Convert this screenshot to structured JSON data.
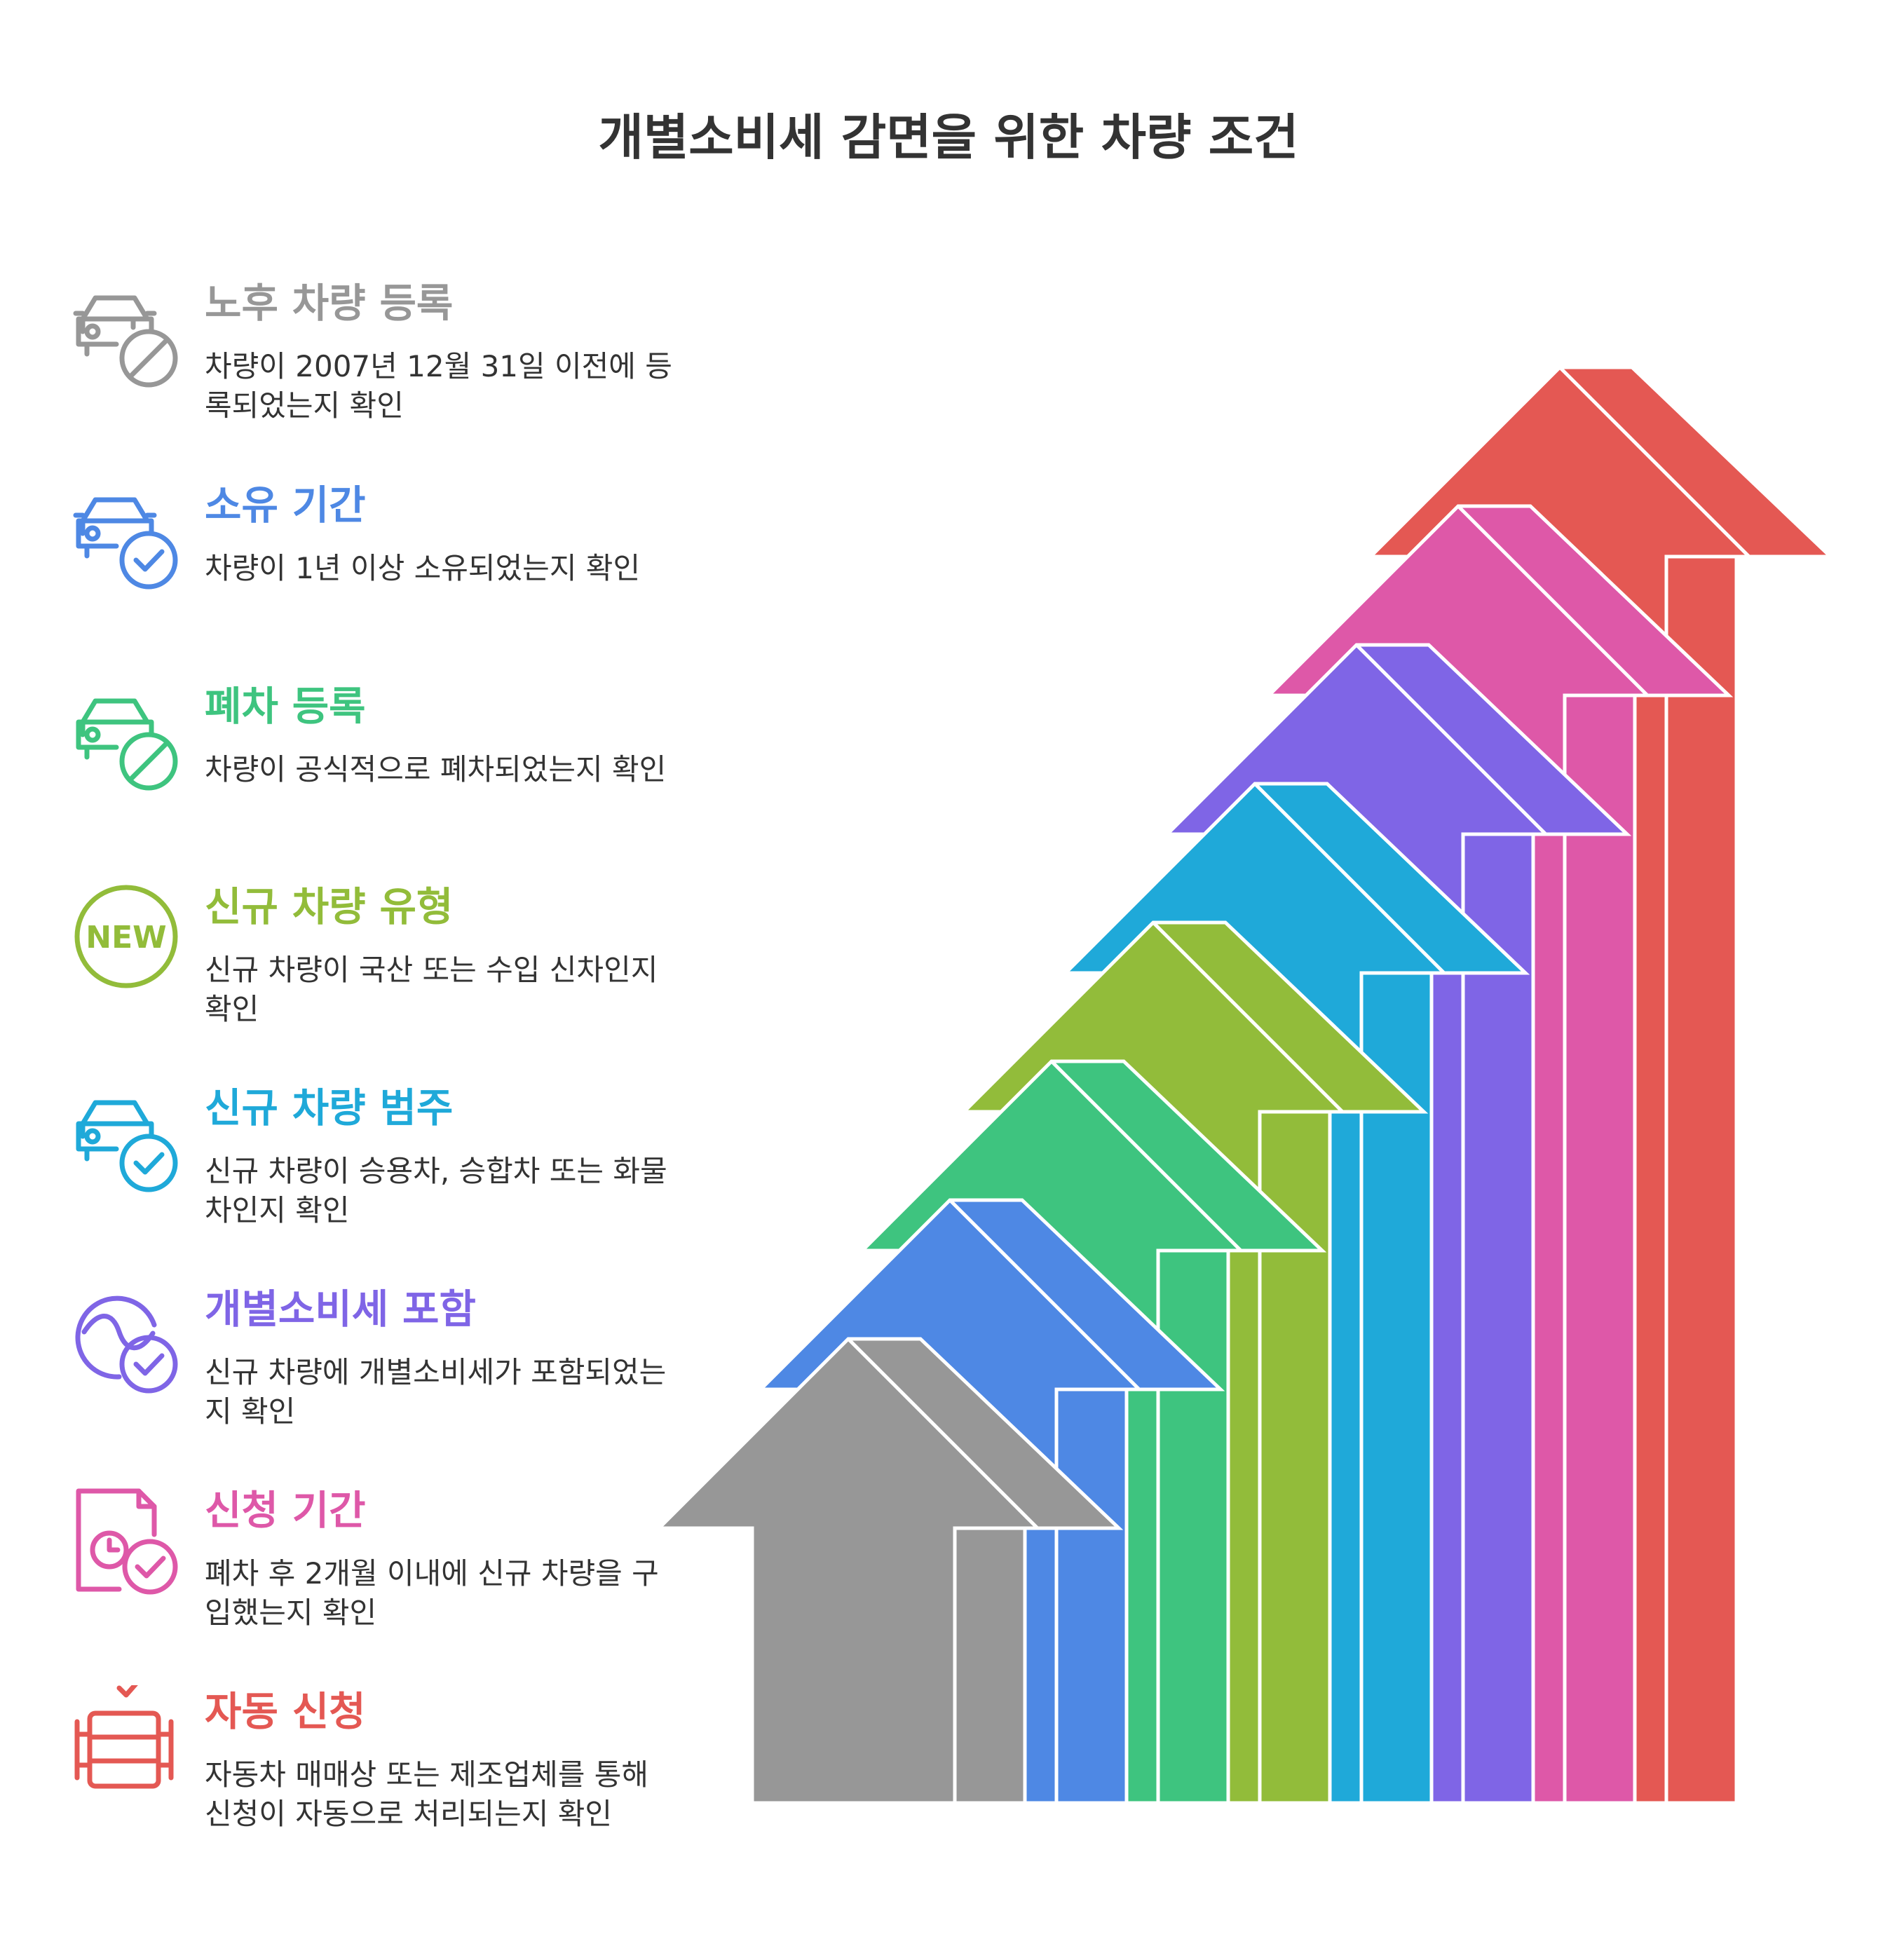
{
  "title": "개별소비세 감면을 위한 차량 조건",
  "steps": [
    {
      "title": "노후 차량 등록",
      "description": "차량이 2007년 12월 31일 이전에 등록되었는지 확인",
      "color": "#979797",
      "icon": "car-prohibited-icon"
    },
    {
      "title": "소유 기간",
      "description": "차량이 1년 이상 소유되었는지 확인",
      "color": "#4e88e4",
      "icon": "car-check-icon"
    },
    {
      "title": "폐차 등록",
      "description": "차량이 공식적으로 폐차되었는지 확인",
      "color": "#3ec47f",
      "icon": "car-prohibited-icon"
    },
    {
      "title": "신규 차량 유형",
      "description": "신규 차량이 국산 또는 수입 신차인지 확인",
      "color": "#92bc3a",
      "icon": "new-badge-icon",
      "icon_text": "NEW"
    },
    {
      "title": "신규 차량 범주",
      "description": "신규 차량이 승용차, 승합차 또는 화물차인지 확인",
      "color": "#1fa9d9",
      "icon": "car-check-icon"
    },
    {
      "title": "개별소비세 포함",
      "description": "신규 차량에 개별소비세가 포함되었는지 확인",
      "color": "#7f65e6",
      "icon": "tax-check-icon"
    },
    {
      "title": "신청 기간",
      "description": "폐차 후 2개월 이내에 신규 차량을 구입했는지 확인",
      "color": "#de58a8",
      "icon": "document-clock-check-icon"
    },
    {
      "title": "자동 신청",
      "description": "자동차 매매상 또는 제조업체를 통해 신청이 자동으로 처리되는지 확인",
      "color": "#e45853",
      "icon": "server-check-icon"
    }
  ]
}
